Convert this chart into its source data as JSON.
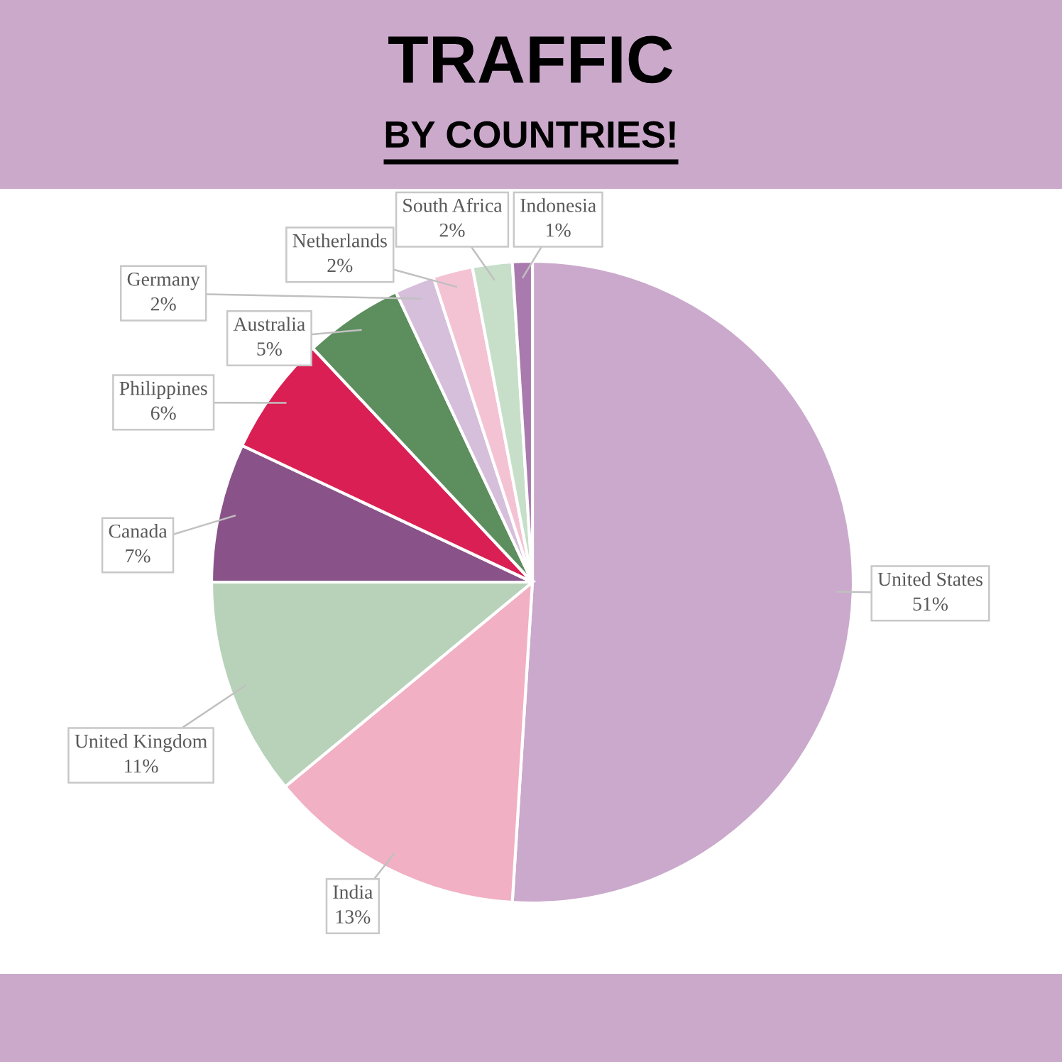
{
  "chart_data": {
    "type": "pie",
    "title": "TRAFFIC",
    "subtitle": "BY COUNTRIES!",
    "categories": [
      "United States",
      "India",
      "United Kingdom",
      "Canada",
      "Philippines",
      "Australia",
      "Germany",
      "Netherlands",
      "South Africa",
      "Indonesia"
    ],
    "values": [
      51,
      13,
      11,
      7,
      6,
      5,
      2,
      2,
      2,
      1
    ],
    "value_labels": [
      "51%",
      "13%",
      "11%",
      "7%",
      "6%",
      "5%",
      "2%",
      "2%",
      "2%",
      "1%"
    ],
    "colors": [
      "#caa9cc",
      "#f1b0c3",
      "#b8d2b9",
      "#895389",
      "#d91f53",
      "#5d8e5e",
      "#d6bfdb",
      "#f4c3d3",
      "#c7dfc9",
      "#a87aae"
    ]
  }
}
